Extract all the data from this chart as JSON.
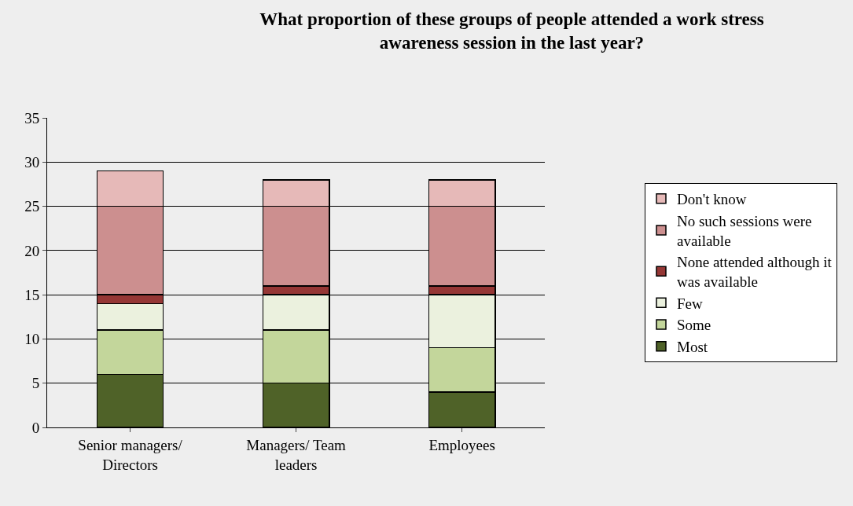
{
  "chart_data": {
    "type": "bar",
    "stacked": true,
    "title": "What proportion of these groups of people attended a work stress awareness session in the last year?",
    "categories": [
      "Senior managers/ Directors",
      "Managers/ Team leaders",
      "Employees"
    ],
    "series": [
      {
        "name": "Most",
        "color": "#4f6228",
        "values": [
          6,
          5,
          4
        ]
      },
      {
        "name": "Some",
        "color": "#c3d69b",
        "values": [
          5,
          6,
          5
        ]
      },
      {
        "name": "Few",
        "color": "#ebf1de",
        "values": [
          3,
          4,
          6
        ]
      },
      {
        "name": "None attended although it was available",
        "color": "#953735",
        "values": [
          1,
          1,
          1
        ]
      },
      {
        "name": "No such sessions were available",
        "color": "#cc8f8f",
        "values": [
          10,
          9,
          9
        ]
      },
      {
        "name": "Don't know",
        "color": "#e6b9b8",
        "values": [
          4,
          3,
          3
        ]
      }
    ],
    "ylim": [
      0,
      35
    ],
    "yticks": [
      0,
      5,
      10,
      15,
      20,
      25,
      30,
      35
    ],
    "grid": "y",
    "legend": "right"
  }
}
